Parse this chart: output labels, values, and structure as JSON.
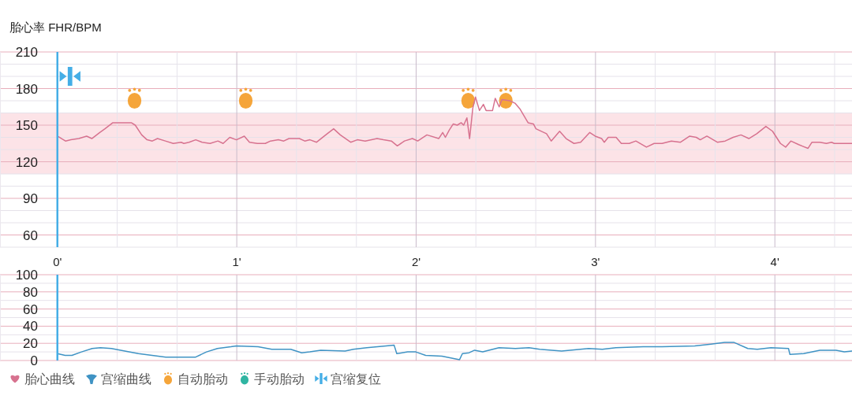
{
  "chart_data": [
    {
      "type": "line",
      "ylabel": "胎心率 FHR/BPM",
      "xlim": [
        -0.32,
        4.43
      ],
      "xticks": [
        {
          "value": 0,
          "label": "0'"
        },
        {
          "value": 0.333,
          "label": null
        },
        {
          "value": 0.667,
          "label": null
        },
        {
          "value": 1,
          "label": "1'"
        },
        {
          "value": 1.333,
          "label": null
        },
        {
          "value": 1.667,
          "label": null
        },
        {
          "value": 2,
          "label": "2'"
        },
        {
          "value": 2.333,
          "label": null
        },
        {
          "value": 2.667,
          "label": null
        },
        {
          "value": 3,
          "label": "3'"
        },
        {
          "value": 3.333,
          "label": null
        },
        {
          "value": 3.667,
          "label": null
        },
        {
          "value": 4,
          "label": "4'"
        },
        {
          "value": 4.333,
          "label": null
        }
      ],
      "ylim": [
        50,
        210
      ],
      "yticks": [
        {
          "value": 50,
          "label": null
        },
        60,
        {
          "value": 70,
          "label": null
        },
        {
          "value": 80,
          "label": null
        },
        90,
        {
          "value": 100,
          "label": null
        },
        {
          "value": 110,
          "label": null
        },
        120,
        {
          "value": 130,
          "label": null
        },
        {
          "value": 140,
          "label": null
        },
        150,
        {
          "value": 160,
          "label": null
        },
        {
          "value": 170,
          "label": null
        },
        180,
        {
          "value": 190,
          "label": null
        },
        {
          "value": 200,
          "label": null
        },
        210
      ],
      "grid": true,
      "legend": "bottom left",
      "bands": [
        {
          "axis": "y",
          "from": 110,
          "to": 160,
          "color": "#fce3e7"
        }
      ],
      "ref_lines": [
        {
          "axis": "x",
          "value": 0,
          "label": "宫缩复位",
          "color": "#45aee6"
        }
      ],
      "series": [
        {
          "name": "胎心曲线",
          "type": "line",
          "color": "#d7728f",
          "x": [
            0.0,
            0.045,
            0.075,
            0.119,
            0.163,
            0.192,
            0.236,
            0.265,
            0.309,
            0.353,
            0.382,
            0.412,
            0.434,
            0.47,
            0.5,
            0.529,
            0.558,
            0.602,
            0.646,
            0.69,
            0.705,
            0.734,
            0.771,
            0.807,
            0.851,
            0.895,
            0.924,
            0.961,
            0.998,
            1.042,
            1.071,
            1.115,
            1.159,
            1.188,
            1.232,
            1.262,
            1.291,
            1.349,
            1.379,
            1.408,
            1.445,
            1.496,
            1.54,
            1.577,
            1.635,
            1.672,
            1.716,
            1.782,
            1.818,
            1.862,
            1.895,
            1.935,
            1.979,
            2.009,
            2.06,
            2.126,
            2.148,
            2.163,
            2.185,
            2.207,
            2.229,
            2.251,
            2.265,
            2.283,
            2.298,
            2.316,
            2.331,
            2.353,
            2.375,
            2.39,
            2.426,
            2.441,
            2.463,
            2.478,
            2.522,
            2.551,
            2.58,
            2.624,
            2.654,
            2.668,
            2.727,
            2.753,
            2.8,
            2.836,
            2.88,
            2.917,
            2.968,
            2.998,
            3.034,
            3.049,
            3.071,
            3.115,
            3.144,
            3.188,
            3.225,
            3.284,
            3.327,
            3.371,
            3.423,
            3.474,
            3.525,
            3.562,
            3.584,
            3.621,
            3.679,
            3.723,
            3.767,
            3.811,
            3.855,
            3.899,
            3.95,
            3.987,
            4.031,
            4.06,
            4.089,
            4.133,
            4.185,
            4.207,
            4.251,
            4.287,
            4.316,
            4.331,
            4.43
          ],
          "values": [
            141,
            137,
            138,
            139,
            141,
            139,
            144,
            147,
            152,
            152,
            152,
            152,
            150,
            142,
            138,
            137,
            139,
            137,
            135,
            136,
            135,
            136,
            138,
            136,
            135,
            137,
            135,
            140,
            138,
            141,
            136,
            135,
            135,
            137,
            138,
            137,
            139,
            139,
            137,
            138,
            136,
            142,
            147,
            142,
            136,
            138,
            137,
            139,
            138,
            137,
            133,
            137,
            139,
            137,
            142,
            139,
            144,
            140,
            146,
            151,
            150,
            152,
            150,
            156,
            139,
            164,
            173,
            162,
            167,
            162,
            162,
            172,
            165,
            171,
            170,
            168,
            163,
            152,
            151,
            147,
            143,
            137,
            145,
            139,
            135,
            136,
            144,
            141,
            139,
            136,
            140,
            140,
            135,
            135,
            137,
            132,
            135,
            135,
            137,
            136,
            141,
            140,
            138,
            141,
            136,
            137,
            140,
            142,
            139,
            143,
            149,
            145,
            135,
            132,
            137,
            134,
            131,
            136,
            136,
            135,
            136,
            135,
            135
          ]
        },
        {
          "name": "自动胎动",
          "type": "scatter",
          "color": "#f5a53a",
          "x": [
            0.43,
            1.05,
            2.29,
            2.5
          ],
          "values": [
            170,
            170,
            170,
            170
          ]
        },
        {
          "name": "手动胎动",
          "type": "scatter",
          "color": "#2fb5a2"
        }
      ]
    },
    {
      "type": "line",
      "xlim": [
        -0.32,
        4.43
      ],
      "xticks": [
        {
          "value": 0,
          "label": null
        },
        {
          "value": 0.333,
          "label": null
        },
        {
          "value": 0.667,
          "label": null
        },
        {
          "value": 1,
          "label": null
        },
        {
          "value": 1.333,
          "label": null
        },
        {
          "value": 1.667,
          "label": null
        },
        {
          "value": 2,
          "label": null
        },
        {
          "value": 2.333,
          "label": null
        },
        {
          "value": 2.667,
          "label": null
        },
        {
          "value": 3,
          "label": null
        },
        {
          "value": 3.333,
          "label": null
        },
        {
          "value": 3.667,
          "label": null
        },
        {
          "value": 4,
          "label": null
        },
        {
          "value": 4.333,
          "label": null
        }
      ],
      "ylim": [
        0,
        100
      ],
      "yticks": [
        0,
        {
          "value": 10,
          "label": null
        },
        20,
        {
          "value": 30,
          "label": null
        },
        40,
        {
          "value": 50,
          "label": null
        },
        60,
        {
          "value": 70,
          "label": null
        },
        80,
        {
          "value": 90,
          "label": null
        },
        100
      ],
      "grid": true,
      "tick_labels": "y",
      "legend": "bottom left",
      "ref_lines": [
        {
          "axis": "x",
          "value": 0,
          "color": "#45aee6"
        }
      ],
      "series": [
        {
          "name": "宫缩曲线",
          "type": "line",
          "color": "#3f93c4",
          "x": [
            0.0,
            0.043,
            0.081,
            0.134,
            0.194,
            0.24,
            0.301,
            0.376,
            0.452,
            0.528,
            0.604,
            0.771,
            0.831,
            0.892,
            0.967,
            0.998,
            1.119,
            1.195,
            1.301,
            1.362,
            1.407,
            1.468,
            1.604,
            1.65,
            1.725,
            1.832,
            1.877,
            1.892,
            1.953,
            1.998,
            2.053,
            2.144,
            2.242,
            2.258,
            2.295,
            2.326,
            2.371,
            2.462,
            2.553,
            2.629,
            2.689,
            2.811,
            2.962,
            3.038,
            3.114,
            3.266,
            3.371,
            3.553,
            3.644,
            3.72,
            3.773,
            3.849,
            3.902,
            3.978,
            4.076,
            4.084,
            4.16,
            4.251,
            4.341,
            4.387,
            4.43
          ],
          "values": [
            8,
            6,
            6,
            10,
            14,
            15,
            14,
            11,
            8,
            6,
            4,
            4,
            10,
            14,
            16,
            17,
            16,
            13,
            13,
            9,
            10,
            12,
            11,
            13,
            15,
            17,
            18,
            8,
            10,
            10,
            6,
            5,
            1,
            8,
            9,
            12,
            10,
            15,
            14,
            15,
            13,
            11,
            14,
            13,
            15,
            16,
            16,
            17,
            19,
            21,
            21,
            14,
            13,
            15,
            14,
            7,
            8,
            12,
            12,
            10,
            11
          ]
        }
      ]
    }
  ]
}
